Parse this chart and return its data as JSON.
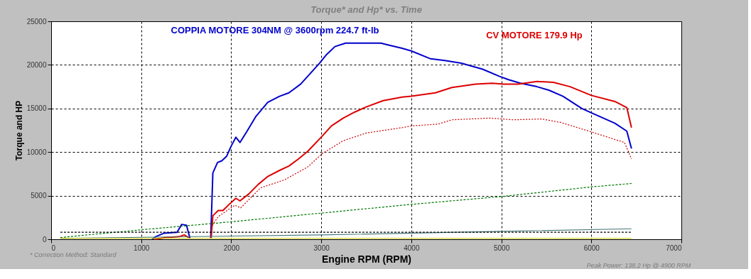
{
  "chart_data": {
    "type": "line",
    "title": "Torque* and Hp* vs. Time",
    "xlabel": "Engine RPM (RPM)",
    "ylabel": "Torque and HP",
    "xlim": [
      0,
      7000
    ],
    "xticks": [
      0,
      1000,
      2000,
      3000,
      4000,
      5000,
      6000,
      7000
    ],
    "ylim": [
      0,
      25000
    ],
    "yticks": [
      0,
      5000,
      10000,
      15000,
      20000,
      25000
    ],
    "grid": true,
    "marker": "none",
    "series": [
      {
        "color": "#0000cc",
        "line_style": "solid",
        "x": [
          1123,
          1162,
          1254,
          1398,
          1450,
          1503,
          1542,
          1660,
          1772,
          1796,
          1848,
          1895,
          1948,
          2000,
          2052,
          2097,
          2170,
          2275,
          2406,
          2537,
          2641,
          2772,
          2877,
          2982,
          3060,
          3152,
          3270,
          3505,
          3662,
          3741,
          3898,
          4000,
          4215,
          4373,
          4556,
          4793,
          4976,
          5081,
          5213,
          5396,
          5528,
          5685,
          5895,
          6000,
          6262,
          6394,
          6446
        ],
        "values": [
          0,
          300,
          700,
          800,
          1700,
          1600,
          100,
          null,
          100,
          7600,
          8800,
          9000,
          9500,
          10700,
          11700,
          11100,
          12300,
          14100,
          15700,
          16400,
          16800,
          17800,
          19000,
          20200,
          21200,
          22100,
          22500,
          22500,
          22500,
          22300,
          21900,
          21600,
          20700,
          20500,
          20200,
          19500,
          18700,
          18300,
          17900,
          17500,
          17100,
          16400,
          15000,
          14500,
          13300,
          12400,
          10400
        ]
      },
      {
        "color": "#dd0000",
        "line_style": "solid",
        "x": [
          1149,
          1280,
          1424,
          1477,
          1529,
          1660,
          1777,
          1796,
          1856,
          1908,
          1987,
          2052,
          2097,
          2196,
          2301,
          2406,
          2537,
          2641,
          2746,
          2851,
          3008,
          3113,
          3244,
          3374,
          3505,
          3688,
          3898,
          4000,
          4268,
          4451,
          4714,
          4898,
          5029,
          5186,
          5396,
          5580,
          5764,
          6000,
          6262,
          6394,
          6446
        ],
        "values": [
          0,
          200,
          300,
          500,
          200,
          null,
          100,
          2700,
          3300,
          3300,
          4100,
          4700,
          4400,
          5200,
          6300,
          7200,
          7900,
          8400,
          9200,
          10100,
          11800,
          13000,
          13900,
          14600,
          15200,
          15900,
          16300,
          16400,
          16800,
          17400,
          17800,
          17900,
          17800,
          17800,
          18100,
          18000,
          17500,
          16500,
          15800,
          15100,
          12800
        ]
      },
      {
        "color": "#cc0000",
        "line_style": "dotted",
        "x": [
          1791,
          1856,
          2040,
          2105,
          2327,
          2589,
          2851,
          3008,
          3244,
          3505,
          3898,
          4000,
          4294,
          4451,
          4872,
          5134,
          5449,
          5659,
          5974,
          6367,
          6406,
          6446
        ],
        "values": [
          1600,
          2600,
          3900,
          3600,
          5900,
          6800,
          8300,
          9800,
          11300,
          12200,
          12800,
          13000,
          13200,
          13700,
          13900,
          13700,
          13800,
          13400,
          12400,
          11100,
          10200,
          9200
        ]
      },
      {
        "color": "#007700",
        "line_style": "dashed",
        "x": [
          102,
          1018,
          2000,
          3000,
          3898,
          4000,
          5000,
          6000,
          6446
        ],
        "values": [
          200,
          1100,
          2000,
          3000,
          3900,
          4000,
          4900,
          6000,
          6400
        ]
      },
      {
        "color": "#4a7a7a",
        "line_style": "solid",
        "x": [
          102,
          3000,
          5000,
          6446
        ],
        "values": [
          100,
          500,
          900,
          1200
        ]
      },
      {
        "color": "#000000",
        "line_style": "dashed",
        "x": [
          102,
          6446
        ],
        "values": [
          800,
          800
        ]
      },
      {
        "color": "#cccc00",
        "line_style": "solid",
        "x": [
          102,
          6446
        ],
        "values": [
          100,
          100
        ]
      }
    ],
    "annotations": [
      "COPPIA MOTORE 304NM @ 3600rpm 224.7 ft-lb",
      "CV MOTORE 179.9 Hp",
      "* Correction Method: Standard",
      "Peak Power: 138.2 Hp @ 4900 RPM"
    ]
  }
}
